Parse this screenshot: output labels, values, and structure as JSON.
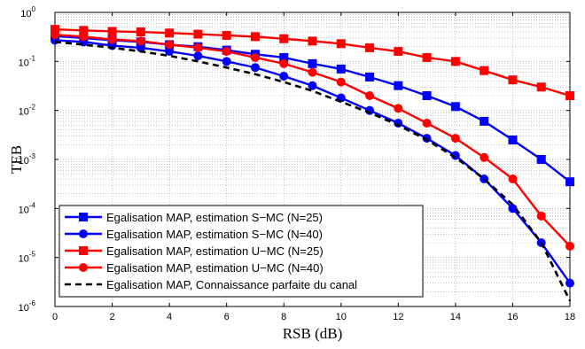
{
  "chart_data": {
    "type": "line",
    "xlabel": "RSB (dB)",
    "ylabel": "TEB",
    "xlim": [
      0,
      18
    ],
    "ylim": [
      1e-06,
      1
    ],
    "yscale": "log",
    "grid": true,
    "legend_position": "bottom-left",
    "x_ticks": [
      "0",
      "2",
      "4",
      "6",
      "8",
      "10",
      "12",
      "14",
      "16",
      "18"
    ],
    "y_ticks": [
      {
        "base": "10",
        "exp": "0"
      },
      {
        "base": "10",
        "exp": "-1"
      },
      {
        "base": "10",
        "exp": "-2"
      },
      {
        "base": "10",
        "exp": "-3"
      },
      {
        "base": "10",
        "exp": "-4"
      },
      {
        "base": "10",
        "exp": "-5"
      },
      {
        "base": "10",
        "exp": "-6"
      }
    ],
    "x": [
      0,
      1,
      2,
      3,
      4,
      5,
      6,
      7,
      8,
      9,
      10,
      11,
      12,
      13,
      14,
      15,
      16,
      17,
      18
    ],
    "series": [
      {
        "name": "Egalisation MAP, estimation S−MC (N=25)",
        "color": "#0000ff",
        "marker": "square",
        "dash": "solid",
        "values": [
          0.33,
          0.3,
          0.27,
          0.25,
          0.22,
          0.2,
          0.17,
          0.14,
          0.12,
          0.09,
          0.07,
          0.048,
          0.032,
          0.02,
          0.012,
          0.006,
          0.0025,
          0.001,
          0.00035
        ]
      },
      {
        "name": "Egalisation MAP, estimation S−MC (N=40)",
        "color": "#0000ff",
        "marker": "circle",
        "dash": "solid",
        "values": [
          0.27,
          0.25,
          0.21,
          0.19,
          0.16,
          0.13,
          0.1,
          0.075,
          0.05,
          0.032,
          0.018,
          0.01,
          0.0055,
          0.0027,
          0.0012,
          0.0004,
          0.0001,
          2e-05,
          3e-06
        ]
      },
      {
        "name": "Egalisation MAP, estimation U−MC (N=25)",
        "color": "#ff0000",
        "marker": "square",
        "dash": "solid",
        "values": [
          0.45,
          0.43,
          0.41,
          0.4,
          0.38,
          0.36,
          0.34,
          0.32,
          0.29,
          0.26,
          0.23,
          0.19,
          0.16,
          0.12,
          0.1,
          0.065,
          0.042,
          0.03,
          0.02
        ]
      },
      {
        "name": "Egalisation MAP, estimation U−MC (N=40)",
        "color": "#ff0000",
        "marker": "circle",
        "dash": "solid",
        "values": [
          0.35,
          0.32,
          0.28,
          0.26,
          0.22,
          0.19,
          0.16,
          0.12,
          0.09,
          0.06,
          0.038,
          0.02,
          0.011,
          0.0055,
          0.0027,
          0.0011,
          0.0004,
          7e-05,
          1.7e-05
        ]
      },
      {
        "name": "Egalisation MAP, Connaissance parfaite du canal",
        "color": "#000000",
        "marker": "none",
        "dash": "dashed",
        "values": [
          0.25,
          0.22,
          0.19,
          0.16,
          0.13,
          0.1,
          0.075,
          0.055,
          0.038,
          0.025,
          0.015,
          0.009,
          0.005,
          0.0025,
          0.0011,
          0.0004,
          0.00012,
          2e-05,
          1.3e-06
        ]
      }
    ]
  }
}
